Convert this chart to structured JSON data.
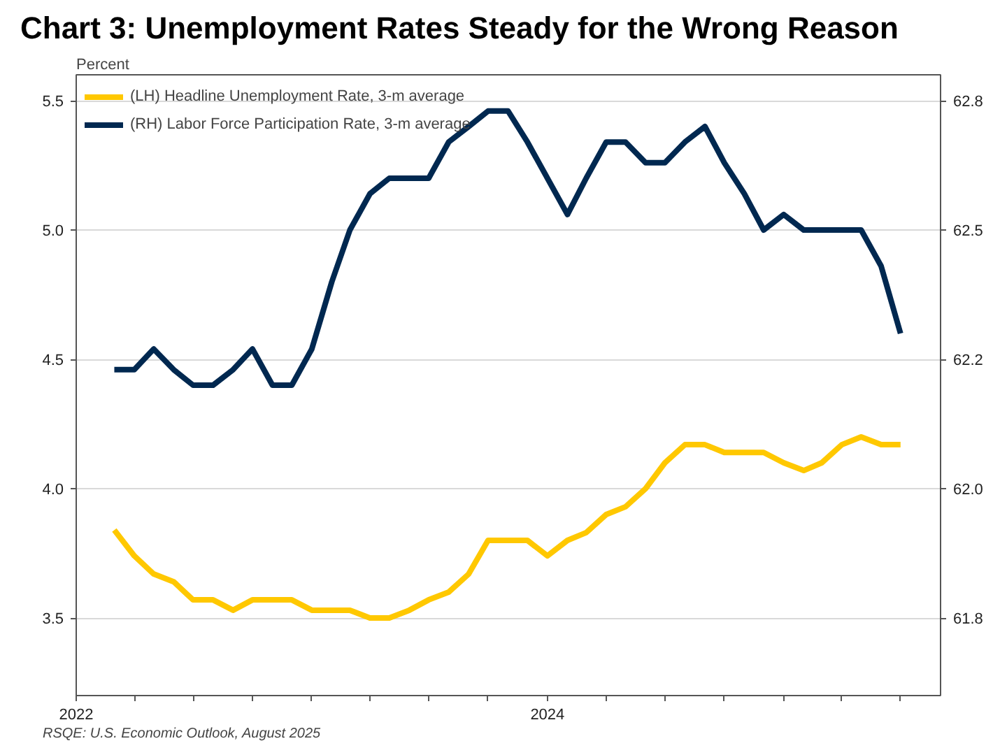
{
  "chart_data": {
    "type": "line",
    "title": "Chart 3: Unemployment Rates Steady for the Wrong Reason",
    "ylabel": "Percent",
    "x": [
      "2022-03",
      "2022-04",
      "2022-05",
      "2022-06",
      "2022-07",
      "2022-08",
      "2022-09",
      "2022-10",
      "2022-11",
      "2022-12",
      "2023-01",
      "2023-02",
      "2023-03",
      "2023-04",
      "2023-05",
      "2023-06",
      "2023-07",
      "2023-08",
      "2023-09",
      "2023-10",
      "2023-11",
      "2023-12",
      "2024-01",
      "2024-02",
      "2024-03",
      "2024-04",
      "2024-05",
      "2024-06",
      "2024-07",
      "2024-08",
      "2024-09",
      "2024-10",
      "2024-11",
      "2024-12",
      "2025-01",
      "2025-02",
      "2025-03",
      "2025-04",
      "2025-05",
      "2025-06",
      "2025-07"
    ],
    "series": [
      {
        "name": "(LH) Headline Unemployment Rate, 3-m average",
        "color": "#ffc800",
        "values": [
          3.84,
          3.74,
          3.67,
          3.64,
          3.57,
          3.57,
          3.53,
          3.57,
          3.57,
          3.57,
          3.53,
          3.53,
          3.53,
          3.5,
          3.5,
          3.53,
          3.57,
          3.6,
          3.67,
          3.8,
          3.8,
          3.8,
          3.74,
          3.8,
          3.83,
          3.9,
          3.93,
          4.0,
          4.1,
          4.17,
          4.17,
          4.14,
          4.14,
          4.14,
          4.1,
          4.07,
          4.1,
          4.17,
          4.2,
          4.17,
          4.17
        ]
      },
      {
        "name": "(RH) Labor Force Participation Rate, 3-m average",
        "color": "#002850",
        "axis": "y2",
        "values": [
          62.23,
          62.23,
          62.27,
          62.23,
          62.2,
          62.2,
          62.23,
          62.27,
          62.2,
          62.2,
          62.27,
          62.4,
          62.5,
          62.57,
          62.6,
          62.6,
          62.6,
          62.67,
          62.7,
          62.73,
          62.73,
          62.67,
          62.6,
          62.53,
          62.6,
          62.67,
          62.67,
          62.63,
          62.63,
          62.67,
          62.7,
          62.63,
          62.57,
          62.5,
          62.53,
          62.5,
          62.5,
          62.5,
          62.5,
          62.43,
          62.3
        ]
      }
    ],
    "xlim": [
      "2022-01",
      "2025-09"
    ],
    "xticks": [
      {
        "value": "2022-01",
        "label": "2022"
      },
      {
        "value": "2022-04",
        "label": null
      },
      {
        "value": "2022-07",
        "label": null
      },
      {
        "value": "2022-10",
        "label": null
      },
      {
        "value": "2023-01",
        "label": null
      },
      {
        "value": "2023-04",
        "label": null
      },
      {
        "value": "2023-07",
        "label": null
      },
      {
        "value": "2023-10",
        "label": null
      },
      {
        "value": "2024-01",
        "label": "2024"
      },
      {
        "value": "2024-04",
        "label": null
      },
      {
        "value": "2024-07",
        "label": null
      },
      {
        "value": "2024-10",
        "label": null
      },
      {
        "value": "2025-01",
        "label": null
      },
      {
        "value": "2025-04",
        "label": null
      },
      {
        "value": "2025-07",
        "label": null
      }
    ],
    "ylim": [
      3.2,
      5.6
    ],
    "yticks": [
      3.5,
      {
        "value": 4,
        "label": "4.0"
      },
      4.5,
      {
        "value": 5,
        "label": "5.0"
      },
      5.5
    ],
    "y2lim": [
      61.6,
      62.8
    ],
    "y2ticks": [
      {
        "value": 61.75,
        "label": "61.8"
      },
      {
        "value": 62,
        "label": "62.0"
      },
      {
        "value": 62.25,
        "label": "62.2"
      },
      {
        "value": 62.5,
        "label": "62.5"
      },
      {
        "value": 62.75,
        "label": "62.8"
      }
    ],
    "grid": "y",
    "legend": "top left",
    "line_style": "solid",
    "annotations": [
      "RSQE: U.S. Economic Outlook, August 2025"
    ]
  }
}
